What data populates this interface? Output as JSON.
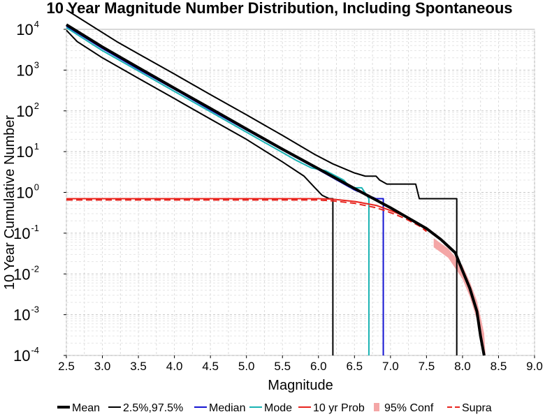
{
  "chart_data": {
    "type": "line",
    "title": "10 Year Magnitude Number Distribution, Including Spontaneous",
    "xlabel": "Magnitude",
    "ylabel": "10 Year Cumulative Number",
    "xlim": [
      2.5,
      9.0
    ],
    "ylim": [
      0.0001,
      10000
    ],
    "yscale": "log",
    "grid": true,
    "legend_position": "bottom",
    "x_ticks": [
      "2.5",
      "3.0",
      "3.5",
      "4.0",
      "4.5",
      "5.0",
      "5.5",
      "6.0",
      "6.5",
      "7.0",
      "7.5",
      "8.0",
      "8.5",
      "9.0"
    ],
    "y_ticks": [
      {
        "base": "10",
        "exp": "4"
      },
      {
        "base": "10",
        "exp": "3"
      },
      {
        "base": "10",
        "exp": "2"
      },
      {
        "base": "10",
        "exp": "1"
      },
      {
        "base": "10",
        "exp": "0"
      },
      {
        "base": "10",
        "exp": "-1"
      },
      {
        "base": "10",
        "exp": "-2"
      },
      {
        "base": "10",
        "exp": "-3"
      },
      {
        "base": "10",
        "exp": "-4"
      }
    ],
    "series": [
      {
        "name": "95% Conf",
        "kind": "band",
        "color": "#f4a6a6",
        "x": [
          7.6,
          7.8,
          8.0,
          8.1,
          8.2,
          8.25,
          8.3,
          8.32
        ],
        "lower": [
          0.045,
          0.025,
          0.0075,
          0.0028,
          0.00075,
          0.00025,
          0.00012,
          0.0001
        ],
        "upper": [
          0.075,
          0.042,
          0.016,
          0.0065,
          0.0022,
          0.0009,
          0.00035,
          0.0001
        ]
      },
      {
        "name": "2.5%,97.5%",
        "kind": "line",
        "color": "#000000",
        "width": 2,
        "x": [
          2.5,
          2.65,
          3.0,
          3.5,
          4.0,
          4.5,
          5.0,
          5.5,
          5.8,
          5.95,
          6.05,
          6.15,
          6.2,
          6.2,
          6.2
        ],
        "y": [
          9500,
          5000,
          2000,
          630,
          200,
          63,
          20,
          5.6,
          2.5,
          1.3,
          0.85,
          0.7,
          0.7,
          0.7,
          0.0001
        ]
      },
      {
        "name": "2.5%,97.5% (upper)",
        "kind": "line",
        "color": "#000000",
        "width": 2,
        "x": [
          2.5,
          3.2,
          3.5,
          4.0,
          4.5,
          5.0,
          5.5,
          5.95,
          6.2,
          6.5,
          6.65,
          6.8,
          6.85,
          6.95,
          7.1,
          7.35,
          7.4,
          7.92,
          7.92,
          7.92
        ],
        "y": [
          30000,
          5000,
          2500,
          800,
          250,
          80,
          25,
          8.5,
          5,
          3,
          2.5,
          2.5,
          2,
          1.6,
          1.6,
          1.6,
          0.7,
          0.7,
          0.7,
          0.0001
        ]
      },
      {
        "name": "Median",
        "kind": "line",
        "color": "#1515d2",
        "width": 2,
        "x": [
          2.5,
          3.0,
          3.5,
          4.0,
          4.5,
          5.0,
          5.5,
          6.0,
          6.5,
          6.8,
          6.9,
          6.9
        ],
        "y": [
          12000,
          3400,
          1050,
          340,
          105,
          34,
          11,
          3.6,
          1.15,
          0.7,
          0.7,
          0.0001
        ]
      },
      {
        "name": "Mode",
        "kind": "line",
        "color": "#19b3b3",
        "width": 2,
        "x": [
          2.5,
          3.0,
          3.5,
          4.0,
          4.5,
          5.0,
          5.5,
          5.7,
          5.9,
          6.1,
          6.35,
          6.45,
          6.6,
          6.7,
          6.7
        ],
        "y": [
          11000,
          3000,
          950,
          300,
          95,
          30,
          9.5,
          6,
          4,
          3.4,
          2,
          1.3,
          1.3,
          0.7,
          0.0001
        ]
      },
      {
        "name": "10 yr Prob",
        "kind": "line",
        "color": "#e8241e",
        "width": 2,
        "x": [
          2.5,
          3.5,
          4.5,
          5.5,
          6.0,
          6.2,
          6.5,
          6.8,
          7.0,
          7.2,
          7.4,
          7.5
        ],
        "y": [
          0.7,
          0.7,
          0.7,
          0.7,
          0.7,
          0.68,
          0.6,
          0.48,
          0.36,
          0.26,
          0.16,
          0.12
        ]
      },
      {
        "name": "Supra",
        "kind": "line",
        "color": "#e8241e",
        "width": 2,
        "dashed": true,
        "x": [
          2.5,
          3.5,
          4.5,
          5.5,
          6.0,
          6.2,
          6.5,
          6.8,
          7.0,
          7.2,
          7.4,
          7.5
        ],
        "y": [
          0.65,
          0.65,
          0.65,
          0.65,
          0.65,
          0.62,
          0.54,
          0.42,
          0.32,
          0.23,
          0.15,
          0.11
        ]
      },
      {
        "name": "Mean",
        "kind": "line",
        "color": "#000000",
        "width": 4,
        "x": [
          2.5,
          3.0,
          3.5,
          4.0,
          4.5,
          5.0,
          5.5,
          6.0,
          6.5,
          7.0,
          7.5,
          7.7,
          7.9,
          8.0,
          8.1,
          8.2,
          8.25,
          8.3
        ],
        "y": [
          13000,
          3700,
          1150,
          360,
          115,
          36,
          11.5,
          3.8,
          1.25,
          0.42,
          0.13,
          0.07,
          0.033,
          0.012,
          0.0045,
          0.0012,
          0.0003,
          0.0001
        ]
      }
    ],
    "legend": [
      {
        "label": "Mean",
        "color": "#000000",
        "style": "thick"
      },
      {
        "label": "2.5%,97.5%",
        "color": "#000000",
        "style": "line"
      },
      {
        "label": "Median",
        "color": "#1515d2",
        "style": "line"
      },
      {
        "label": "Mode",
        "color": "#19b3b3",
        "style": "line"
      },
      {
        "label": "10 yr Prob",
        "color": "#e8241e",
        "style": "line"
      },
      {
        "label": "95% Conf",
        "color": "#f4a6a6",
        "style": "box"
      },
      {
        "label": "Supra",
        "color": "#e8241e",
        "style": "dashed"
      }
    ]
  }
}
